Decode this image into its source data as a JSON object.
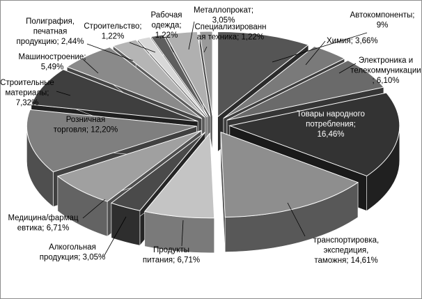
{
  "chart_data": {
    "type": "pie",
    "style": "3d-exploded",
    "unit": "%",
    "slices": [
      {
        "label": "Автокомпоненты",
        "value": 9,
        "value_text": "9%",
        "color": "#555555"
      },
      {
        "label": "Химия",
        "value": 3.66,
        "value_text": "3,66%",
        "color": "#7a7a7a"
      },
      {
        "label": "Электроника и телекоммуникации",
        "value": 6.1,
        "value_text": "6,10%",
        "color": "#6a6a6a"
      },
      {
        "label": "Товары народного потребления",
        "value": 16.46,
        "value_text": "16,46%",
        "color": "#333333"
      },
      {
        "label": "транспортировка, экспедиция, таможня",
        "value": 14.61,
        "value_text": "14,61%",
        "color": "#8e8e8e"
      },
      {
        "label": "Продукты питания",
        "value": 6.71,
        "value_text": "6,71%",
        "color": "#c4c4c4"
      },
      {
        "label": "Алкогольная продукция",
        "value": 3.05,
        "value_text": "3,05%",
        "color": "#4a4a4a"
      },
      {
        "label": "Медицина/фармацевтика",
        "value": 6.71,
        "value_text": "6,71%",
        "color": "#a0a0a0"
      },
      {
        "label": "Розничная торговля",
        "value": 12.2,
        "value_text": "12,20%",
        "color": "#7f7f7f"
      },
      {
        "label": "Строительные материалы",
        "value": 7.32,
        "value_text": "7,32%",
        "color": "#3f3f3f"
      },
      {
        "label": "Машиностроение",
        "value": 5.49,
        "value_text": "5,49%",
        "color": "#8a8a8a"
      },
      {
        "label": "Полиграфия, печатная продукция",
        "value": 2.44,
        "value_text": "2,44%",
        "color": "#b5b5b5"
      },
      {
        "label": "Строительство",
        "value": 1.22,
        "value_text": "1,22%",
        "color": "#d8d8d8"
      },
      {
        "label": "Рабочая одежда",
        "value": 1.22,
        "value_text": "1,22%",
        "color": "#5e5e5e"
      },
      {
        "label": "Металлопрокат",
        "value": 3.05,
        "value_text": "3,05%",
        "color": "#b0b0b0"
      },
      {
        "label": "Специализированная техника",
        "value": 1.22,
        "value_text": "1,22%",
        "color": "#9a9a9a"
      }
    ],
    "data_labels": [
      {
        "lines": [
          "Автокомпоненты;",
          "9%"
        ]
      },
      {
        "lines": [
          "Химия; 3,66%"
        ]
      },
      {
        "lines": [
          "Электроника и",
          "телекоммуникации",
          "; 6,10%"
        ]
      },
      {
        "lines": [
          "Товары народного",
          "потребления;",
          "16,46%"
        ]
      },
      {
        "lines": [
          "транспортировка,",
          "экспедиция,",
          "таможня; 14,61%"
        ]
      },
      {
        "lines": [
          "Продукты",
          "питания; 6,71%"
        ]
      },
      {
        "lines": [
          "Алкогольная",
          "продукция; 3,05%"
        ]
      },
      {
        "lines": [
          "Медицина/фармац",
          "евтика; 6,71%"
        ]
      },
      {
        "lines": [
          "Розничная",
          "торговля; 12,20%"
        ]
      },
      {
        "lines": [
          "Строительные",
          "материалы;",
          "7,32%"
        ]
      },
      {
        "lines": [
          "Машиностроение;",
          "5,49%"
        ]
      },
      {
        "lines": [
          "Полиграфия,",
          "печатная",
          "продукцию; 2,44%"
        ]
      },
      {
        "lines": [
          "Строительство;",
          "1,22%"
        ]
      },
      {
        "lines": [
          "Рабочая",
          "одежда;",
          "1,22%"
        ]
      },
      {
        "lines": [
          "Металлопрокат;",
          "3,05%"
        ]
      },
      {
        "lines": [
          "Специализированн",
          "ая техника; 1,22%"
        ]
      }
    ],
    "title": "",
    "legend": "none"
  }
}
